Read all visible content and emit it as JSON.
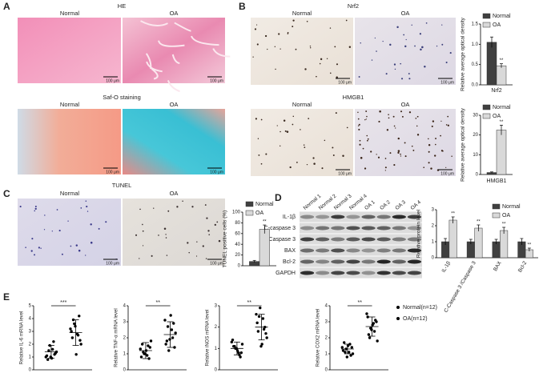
{
  "panels": {
    "A": {
      "letter": "A",
      "sections": [
        {
          "title": "HE",
          "images": [
            "Normal",
            "OA"
          ]
        },
        {
          "title": "Saf-O staining",
          "images": [
            "Normal",
            "OA"
          ]
        }
      ]
    },
    "B": {
      "letter": "B",
      "sections": [
        {
          "title": "Nrf2",
          "images": [
            "Normal",
            "OA"
          ]
        },
        {
          "title": "HMGB1",
          "images": [
            "Normal",
            "OA"
          ]
        }
      ]
    },
    "C": {
      "letter": "C",
      "sections": [
        {
          "title": "TUNEL",
          "images": [
            "Normal",
            "OA"
          ]
        }
      ]
    },
    "D": {
      "letter": "D",
      "lanes": [
        "Normal 1",
        "Normal 2",
        "Normal 3",
        "Normal 4",
        "OA 1",
        "OA 2",
        "OA 3",
        "OA 4"
      ],
      "bands": [
        "IL-1β",
        "C-caspase 3",
        "Caspase 3",
        "BAX",
        "Bcl-2",
        "GAPDH"
      ]
    },
    "E": {
      "letter": "E"
    }
  },
  "scale_bar": "100 μm",
  "chart_data": [
    {
      "type": "bar",
      "ylabel": "Relative average optical density",
      "categories": [
        "Nrf2"
      ],
      "series": [
        {
          "name": "Normal",
          "color": "#404040",
          "values": [
            1.05
          ],
          "errors": [
            0.13
          ]
        },
        {
          "name": "OA",
          "color": "#d9d9d9",
          "values": [
            0.47
          ],
          "errors": [
            0.05
          ],
          "annotations": [
            "**"
          ]
        }
      ],
      "ylim": [
        0,
        1.5
      ],
      "yticks": [
        {
          "value": 0,
          "label": "0.0"
        },
        0.5,
        {
          "value": 1,
          "label": "1.0"
        },
        1.5
      ]
    },
    {
      "type": "bar",
      "ylabel": "Relative average optical density",
      "categories": [
        "HMGB1"
      ],
      "series": [
        {
          "name": "Normal",
          "color": "#404040",
          "values": [
            1
          ],
          "errors": [
            0.3
          ]
        },
        {
          "name": "OA",
          "color": "#d9d9d9",
          "values": [
            22.5
          ],
          "errors": [
            2.5
          ],
          "annotations": [
            "**"
          ]
        }
      ],
      "ylim": [
        0,
        30
      ],
      "yticks": [
        0,
        10,
        20,
        30
      ]
    },
    {
      "type": "bar",
      "ylabel": "TUNEL positive cells (%)",
      "categories": [
        null
      ],
      "series": [
        {
          "name": "Normal",
          "color": "#404040",
          "values": [
            8
          ],
          "errors": [
            2
          ]
        },
        {
          "name": "OA",
          "color": "#d9d9d9",
          "values": [
            68
          ],
          "errors": [
            8
          ],
          "annotations": [
            "**"
          ]
        }
      ],
      "ylim": [
        0,
        100
      ],
      "yticks": [
        0,
        20,
        40,
        60,
        80,
        100
      ]
    },
    {
      "type": "bar",
      "ylabel": "Relative protein level",
      "categories": [
        "IL-1β",
        "C-Caspase 3 /Caspase 3",
        "BAX",
        "Bcl-2"
      ],
      "series": [
        {
          "name": "Normal",
          "color": "#404040",
          "values": [
            1,
            1,
            1,
            1
          ],
          "errors": [
            0.2,
            0.15,
            0.15,
            0.2
          ]
        },
        {
          "name": "OA",
          "color": "#d9d9d9",
          "values": [
            2.35,
            1.85,
            1.7,
            0.5
          ],
          "errors": [
            0.2,
            0.2,
            0.2,
            0.1
          ],
          "annotations": [
            "**",
            "**",
            "**",
            "**"
          ]
        }
      ],
      "ylim": [
        0,
        3
      ],
      "yticks": [
        0,
        1,
        2,
        3
      ]
    },
    {
      "type": "strip",
      "series": [
        {
          "name": "Normal(n=12)",
          "color": "#000000"
        },
        {
          "name": "OA(n=12)",
          "color": "#000000"
        }
      ],
      "plots": [
        {
          "ylabel": "Relative IL-6 mRNA level",
          "ylim": [
            0,
            5
          ],
          "yticks": [
            0,
            1,
            2,
            3,
            4,
            5
          ],
          "significance": "***",
          "values": [
            [
              1.0,
              1.6,
              0.8,
              1.2,
              1.9,
              1.4,
              0.9,
              1.1,
              2.2,
              1.5,
              1.3,
              1.0
            ],
            [
              3.2,
              2.8,
              2.5,
              4.2,
              3.6,
              2.0,
              1.2,
              3.0,
              2.7,
              3.9,
              2.3,
              3.4
            ]
          ],
          "mean": [
            1.4,
            2.9
          ],
          "sd": [
            0.5,
            1.0
          ]
        },
        {
          "ylabel": "Relative TNF-α mRNA level",
          "ylim": [
            0,
            4
          ],
          "yticks": [
            0,
            1,
            2,
            3,
            4
          ],
          "significance": "**",
          "values": [
            [
              1.3,
              0.9,
              1.6,
              0.7,
              1.0,
              1.8,
              1.2,
              0.8,
              1.5,
              1.1,
              1.4,
              1.0
            ],
            [
              3.1,
              2.5,
              1.8,
              2.9,
              1.2,
              2.3,
              3.4,
              1.6,
              2.0,
              2.7,
              1.4,
              1.9
            ]
          ],
          "mean": [
            1.2,
            2.2
          ],
          "sd": [
            0.5,
            0.8
          ]
        },
        {
          "ylabel": "Relative iNOS mRNA level",
          "ylim": [
            0,
            3
          ],
          "yticks": [
            0,
            1,
            2,
            3
          ],
          "significance": "**",
          "values": [
            [
              1.3,
              0.8,
              1.1,
              0.6,
              1.0,
              1.2,
              0.9,
              1.4,
              0.7,
              1.1,
              0.8,
              1.0
            ],
            [
              2.6,
              2.4,
              1.8,
              2.0,
              2.9,
              1.5,
              1.2,
              2.2,
              1.9,
              2.5,
              1.7,
              1.1
            ]
          ],
          "mean": [
            1.0,
            2.0
          ],
          "sd": [
            0.3,
            0.6
          ]
        },
        {
          "ylabel": "Relative COX2 mRNA level",
          "ylim": [
            0,
            4
          ],
          "yticks": [
            0,
            1,
            2,
            3,
            4
          ],
          "significance": "**",
          "values": [
            [
              1.4,
              1.1,
              1.7,
              0.9,
              1.3,
              1.0,
              1.5,
              1.2,
              1.6,
              1.1,
              1.4,
              0.8
            ],
            [
              3.5,
              2.9,
              2.2,
              3.1,
              2.6,
              1.8,
              2.8,
              3.3,
              2.4,
              2.0,
              3.0,
              2.5
            ]
          ],
          "mean": [
            1.3,
            2.7
          ],
          "sd": [
            0.3,
            0.6
          ]
        }
      ]
    }
  ]
}
